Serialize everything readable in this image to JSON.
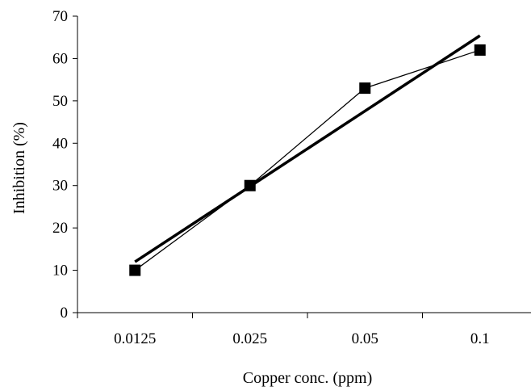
{
  "chart_data": {
    "type": "line",
    "title": "",
    "xlabel": "Copper conc. (ppm)",
    "ylabel": "Inhibition (%)",
    "categories": [
      "0.0125",
      "0.025",
      "0.05",
      "0.1"
    ],
    "series": [
      {
        "values": [
          10,
          30,
          53,
          62
        ],
        "marker": "square",
        "color": "#000000"
      }
    ],
    "trendline": {
      "type": "linear",
      "values": [
        12,
        29.8,
        47.6,
        65.4
      ],
      "color": "#000000"
    },
    "ylim": [
      0,
      70
    ],
    "yticks": [
      0,
      10,
      20,
      30,
      40,
      50,
      60,
      70
    ],
    "grid": false,
    "legend": "none"
  }
}
